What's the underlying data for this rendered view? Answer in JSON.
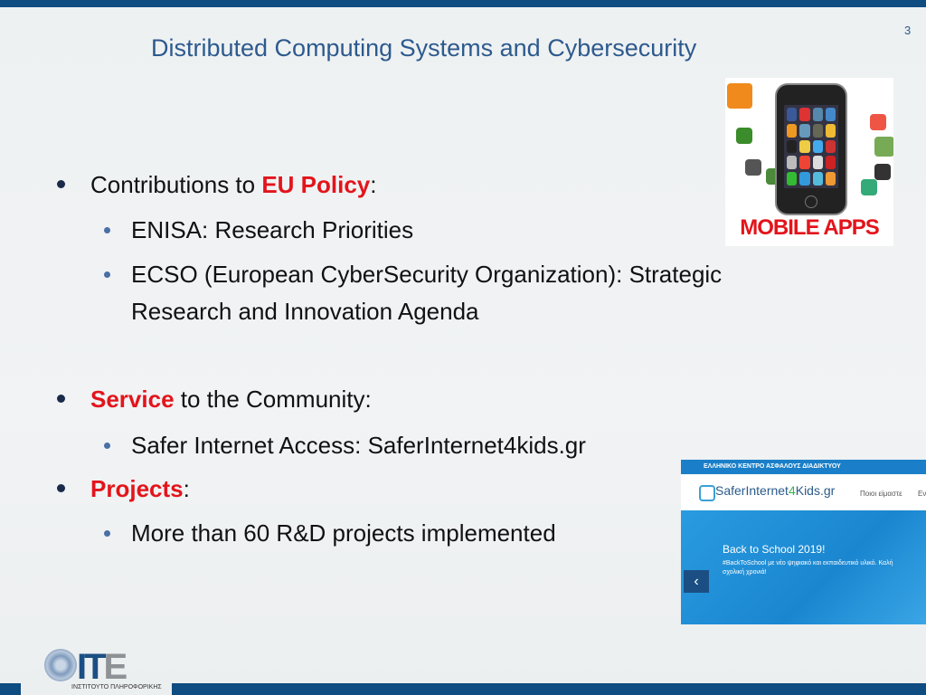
{
  "slide": {
    "title": "Distributed Computing Systems and Cybersecurity",
    "page_number": "3"
  },
  "bullets": {
    "b1_pre": "Contributions to ",
    "b1_hl": "EU Policy",
    "b1_post": ":",
    "b1_1": "ENISA: Research Priorities",
    "b1_2a": "ECSO (European CyberSecurity Organization): Strategic",
    "b1_2b": "Research and Innovation Agenda",
    "b2_hl": "Service",
    "b2_post": " to the Community:",
    "b2_1": "Safer Internet Access: SaferInternet4kids.gr",
    "b3_hl": "Projects",
    "b3_post": ":",
    "b3_1": "More than 60 R&D projects implemented"
  },
  "images": {
    "mobile_label": "MOBILE APPS",
    "site_topbar": "ΕΛΛΗΝΙΚΟ ΚΕΝΤΡΟ ΑΣΦΑΛΟΥΣ ΔΙΑΔΙΚΤΥΟΥ",
    "site_logo_a": "SaferInternet",
    "site_logo_b": "4",
    "site_logo_c": "Kids.gr",
    "site_nav_1": "Ποιοι είμαστε",
    "site_nav_2": "Εν",
    "hero_title": "Back to School 2019!",
    "hero_sub": "#BackToSchool με νέο ψηφιακό και εκπαιδευτικό υλικό. Καλή σχολική χρονιά!",
    "prev_icon": "chevron-left-icon"
  },
  "logo": {
    "letters_a": "IT",
    "letters_b": "E",
    "subtitle": "ΙΝΣΤΙΤΟΥΤΟ ΠΛΗΡΟΦΟΡΙΚΗΣ"
  },
  "colors": {
    "accent_red": "#e3141b",
    "brand_blue": "#0f4c81",
    "title_blue": "#2d5a8e"
  }
}
